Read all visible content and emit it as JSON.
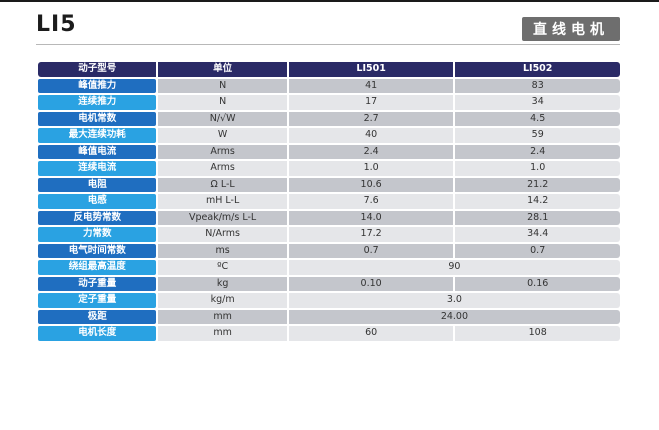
{
  "title": "LI5",
  "badge": "直线电机",
  "table": {
    "headers": [
      "动子型号",
      "单位",
      "LI501",
      "LI502"
    ],
    "rows": [
      {
        "label": "峰值推力",
        "unit": "N",
        "values": [
          "41",
          "83"
        ]
      },
      {
        "label": "连续推力",
        "unit": "N",
        "values": [
          "17",
          "34"
        ]
      },
      {
        "label": "电机常数",
        "unit": "N/√W",
        "values": [
          "2.7",
          "4.5"
        ]
      },
      {
        "label": "最大连续功耗",
        "unit": "W",
        "values": [
          "40",
          "59"
        ]
      },
      {
        "label": "峰值电流",
        "unit": "Arms",
        "values": [
          "2.4",
          "2.4"
        ]
      },
      {
        "label": "连续电流",
        "unit": "Arms",
        "values": [
          "1.0",
          "1.0"
        ]
      },
      {
        "label": "电阻",
        "unit": "Ω L-L",
        "values": [
          "10.6",
          "21.2"
        ]
      },
      {
        "label": "电感",
        "unit": "mH L-L",
        "values": [
          "7.6",
          "14.2"
        ]
      },
      {
        "label": "反电势常数",
        "unit": "Vpeak/m/s L-L",
        "values": [
          "14.0",
          "28.1"
        ]
      },
      {
        "label": "力常数",
        "unit": "N/Arms",
        "values": [
          "17.2",
          "34.4"
        ]
      },
      {
        "label": "电气时间常数",
        "unit": "ms",
        "values": [
          "0.7",
          "0.7"
        ]
      },
      {
        "label": "绕组最高温度",
        "unit": "ºC",
        "values": [
          "90"
        ]
      },
      {
        "label": "动子重量",
        "unit": "kg",
        "values": [
          "0.10",
          "0.16"
        ]
      },
      {
        "label": "定子重量",
        "unit": "kg/m",
        "values": [
          "3.0"
        ]
      },
      {
        "label": "极距",
        "unit": "mm",
        "values": [
          "24.00"
        ]
      },
      {
        "label": "电机长度",
        "unit": "mm",
        "values": [
          "60",
          "108"
        ]
      }
    ]
  }
}
